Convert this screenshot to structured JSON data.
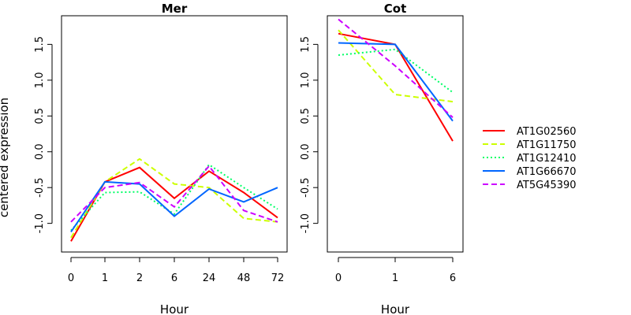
{
  "ylabel": "centered expression",
  "legend": {
    "position": "right",
    "entries": [
      {
        "name": "AT1G02560",
        "color": "#ff0000",
        "dash": "solid"
      },
      {
        "name": "AT1G11750",
        "color": "#ccff00",
        "dash": "dashed"
      },
      {
        "name": "AT1G12410",
        "color": "#00ff66",
        "dash": "dotted"
      },
      {
        "name": "AT1G66670",
        "color": "#0066ff",
        "dash": "solid"
      },
      {
        "name": "AT5G45390",
        "color": "#cc00ff",
        "dash": "dashed"
      }
    ]
  },
  "chart_data": [
    {
      "type": "line",
      "title": "Mer",
      "xlabel": "Hour",
      "ylabel": "centered expression",
      "categories": [
        "0",
        "1",
        "2",
        "6",
        "24",
        "48",
        "72"
      ],
      "ylim": [
        -1.4,
        1.9
      ],
      "yticks": [
        -1.0,
        -0.5,
        0.0,
        0.5,
        1.0,
        1.5
      ],
      "yticklabels": [
        "-1.0",
        "-0.5",
        "0.0",
        "0.5",
        "1.0",
        "1.5"
      ],
      "grid": false,
      "series": [
        {
          "name": "AT1G02560",
          "values": [
            -1.25,
            -0.42,
            -0.22,
            -0.65,
            -0.27,
            -0.57,
            -0.92
          ]
        },
        {
          "name": "AT1G11750",
          "values": [
            -1.2,
            -0.42,
            -0.1,
            -0.45,
            -0.5,
            -0.93,
            -0.98
          ]
        },
        {
          "name": "AT1G12410",
          "values": [
            -1.1,
            -0.57,
            -0.56,
            -0.87,
            -0.18,
            -0.5,
            -0.8
          ]
        },
        {
          "name": "AT1G66670",
          "values": [
            -1.12,
            -0.42,
            -0.45,
            -0.9,
            -0.52,
            -0.7,
            -0.5
          ]
        },
        {
          "name": "AT5G45390",
          "values": [
            -0.98,
            -0.5,
            -0.43,
            -0.77,
            -0.2,
            -0.82,
            -0.98
          ]
        }
      ]
    },
    {
      "type": "line",
      "title": "Cot",
      "xlabel": "Hour",
      "categories": [
        "0",
        "1",
        "6"
      ],
      "ylim": [
        -1.4,
        1.9
      ],
      "yticks": [
        -1.0,
        -0.5,
        0.0,
        0.5,
        1.0,
        1.5
      ],
      "yticklabels": [
        "-1.0",
        "-0.5",
        "0.0",
        "0.5",
        "1.0",
        "1.5"
      ],
      "grid": false,
      "series": [
        {
          "name": "AT1G02560",
          "values": [
            1.65,
            1.5,
            0.15
          ]
        },
        {
          "name": "AT1G11750",
          "values": [
            1.7,
            0.8,
            0.7
          ]
        },
        {
          "name": "AT1G12410",
          "values": [
            1.35,
            1.43,
            0.83
          ]
        },
        {
          "name": "AT1G66670",
          "values": [
            1.52,
            1.5,
            0.43
          ]
        },
        {
          "name": "AT5G45390",
          "values": [
            1.85,
            1.2,
            0.48
          ]
        }
      ]
    }
  ]
}
